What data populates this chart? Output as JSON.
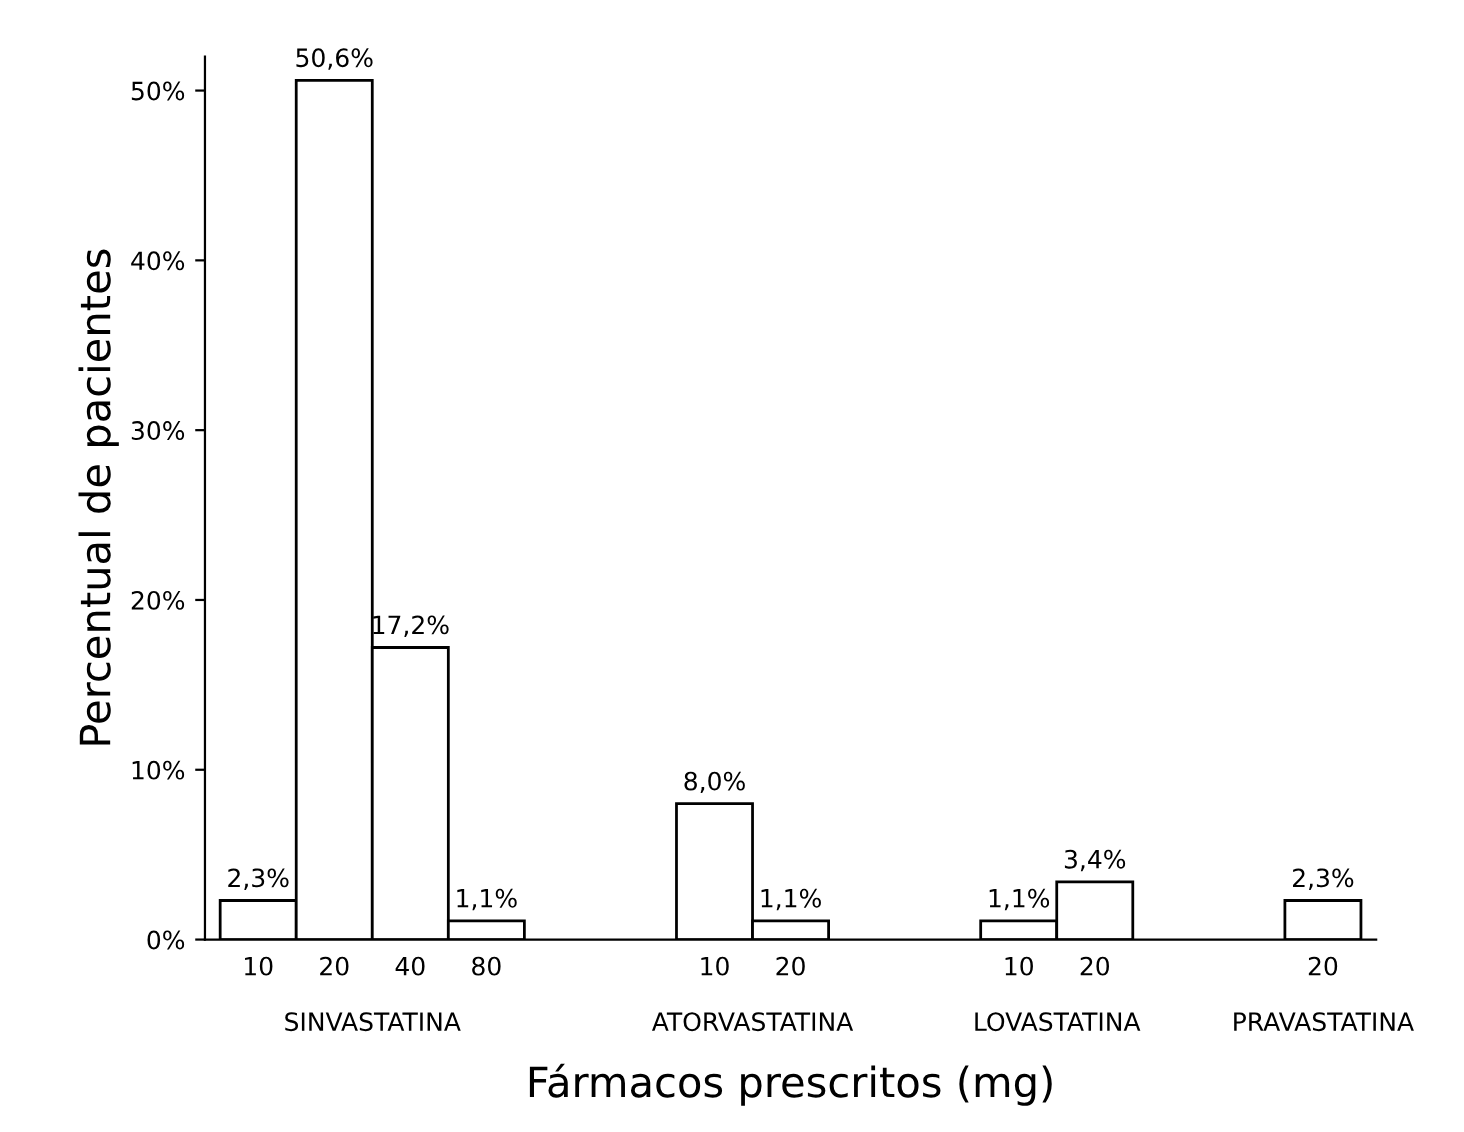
{
  "chart_data": {
    "type": "bar",
    "xlabel": "Fármacos prescritos (mg)",
    "ylabel": "Percentual de pacientes",
    "categories": [
      "10",
      "20",
      "40",
      "80",
      null,
      null,
      "10",
      "20",
      null,
      null,
      "10",
      "20",
      null,
      null,
      "20"
    ],
    "values": [
      2.3,
      50.6,
      17.2,
      1.1,
      null,
      null,
      8.0,
      1.1,
      null,
      null,
      1.1,
      3.4,
      null,
      null,
      2.3
    ],
    "value_labels": [
      "2,3%",
      "50,6%",
      "17,2%",
      "1,1%",
      null,
      null,
      "8,0%",
      "1,1%",
      null,
      null,
      "1,1%",
      "3,4%",
      null,
      null,
      "2,3%"
    ],
    "color": "#ffffff",
    "ylim": [
      0,
      52
    ],
    "yticks": [
      {
        "value": 0,
        "label": "0%"
      },
      {
        "value": 10,
        "label": "10%"
      },
      {
        "value": 20,
        "label": "20%"
      },
      {
        "value": 30,
        "label": "30%"
      },
      {
        "value": 40,
        "label": "40%"
      },
      {
        "value": 50,
        "label": "50%"
      }
    ],
    "annotations": [
      "SINVASTATINA",
      "ATORVASTATINA",
      "LOVASTATINA",
      "PRAVASTATINA"
    ],
    "grid": false,
    "legend": false
  }
}
